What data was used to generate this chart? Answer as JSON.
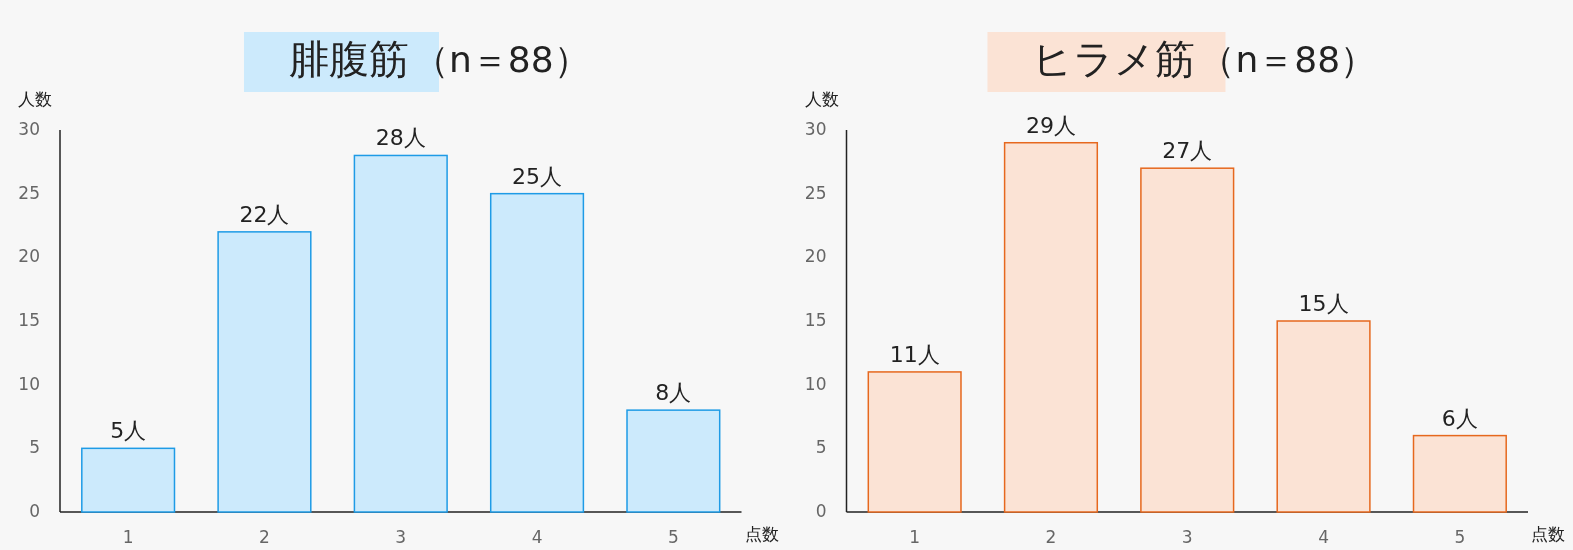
{
  "chart_data": [
    {
      "type": "bar",
      "title": "腓腹筋",
      "subtitle": "（n＝88）",
      "xlabel": "点数",
      "ylabel": "人数",
      "categories": [
        "1",
        "2",
        "3",
        "4",
        "5"
      ],
      "values": [
        5,
        22,
        28,
        25,
        8
      ],
      "value_labels": [
        "5人",
        "22人",
        "28人",
        "25人",
        "8人"
      ],
      "color": "#cceafc",
      "ylim": [
        0,
        30
      ],
      "yticks": [
        0,
        5,
        10,
        15,
        20,
        25,
        30
      ]
    },
    {
      "type": "bar",
      "title": "ヒラメ筋",
      "subtitle": "（n＝88）",
      "xlabel": "点数",
      "ylabel": "人数",
      "categories": [
        "1",
        "2",
        "3",
        "4",
        "5"
      ],
      "values": [
        11,
        29,
        27,
        15,
        6
      ],
      "value_labels": [
        "11人",
        "29人",
        "27人",
        "15人",
        "6人"
      ],
      "color": "#fbe3d5",
      "ylim": [
        0,
        30
      ],
      "yticks": [
        0,
        5,
        10,
        15,
        20,
        25,
        30
      ]
    }
  ]
}
